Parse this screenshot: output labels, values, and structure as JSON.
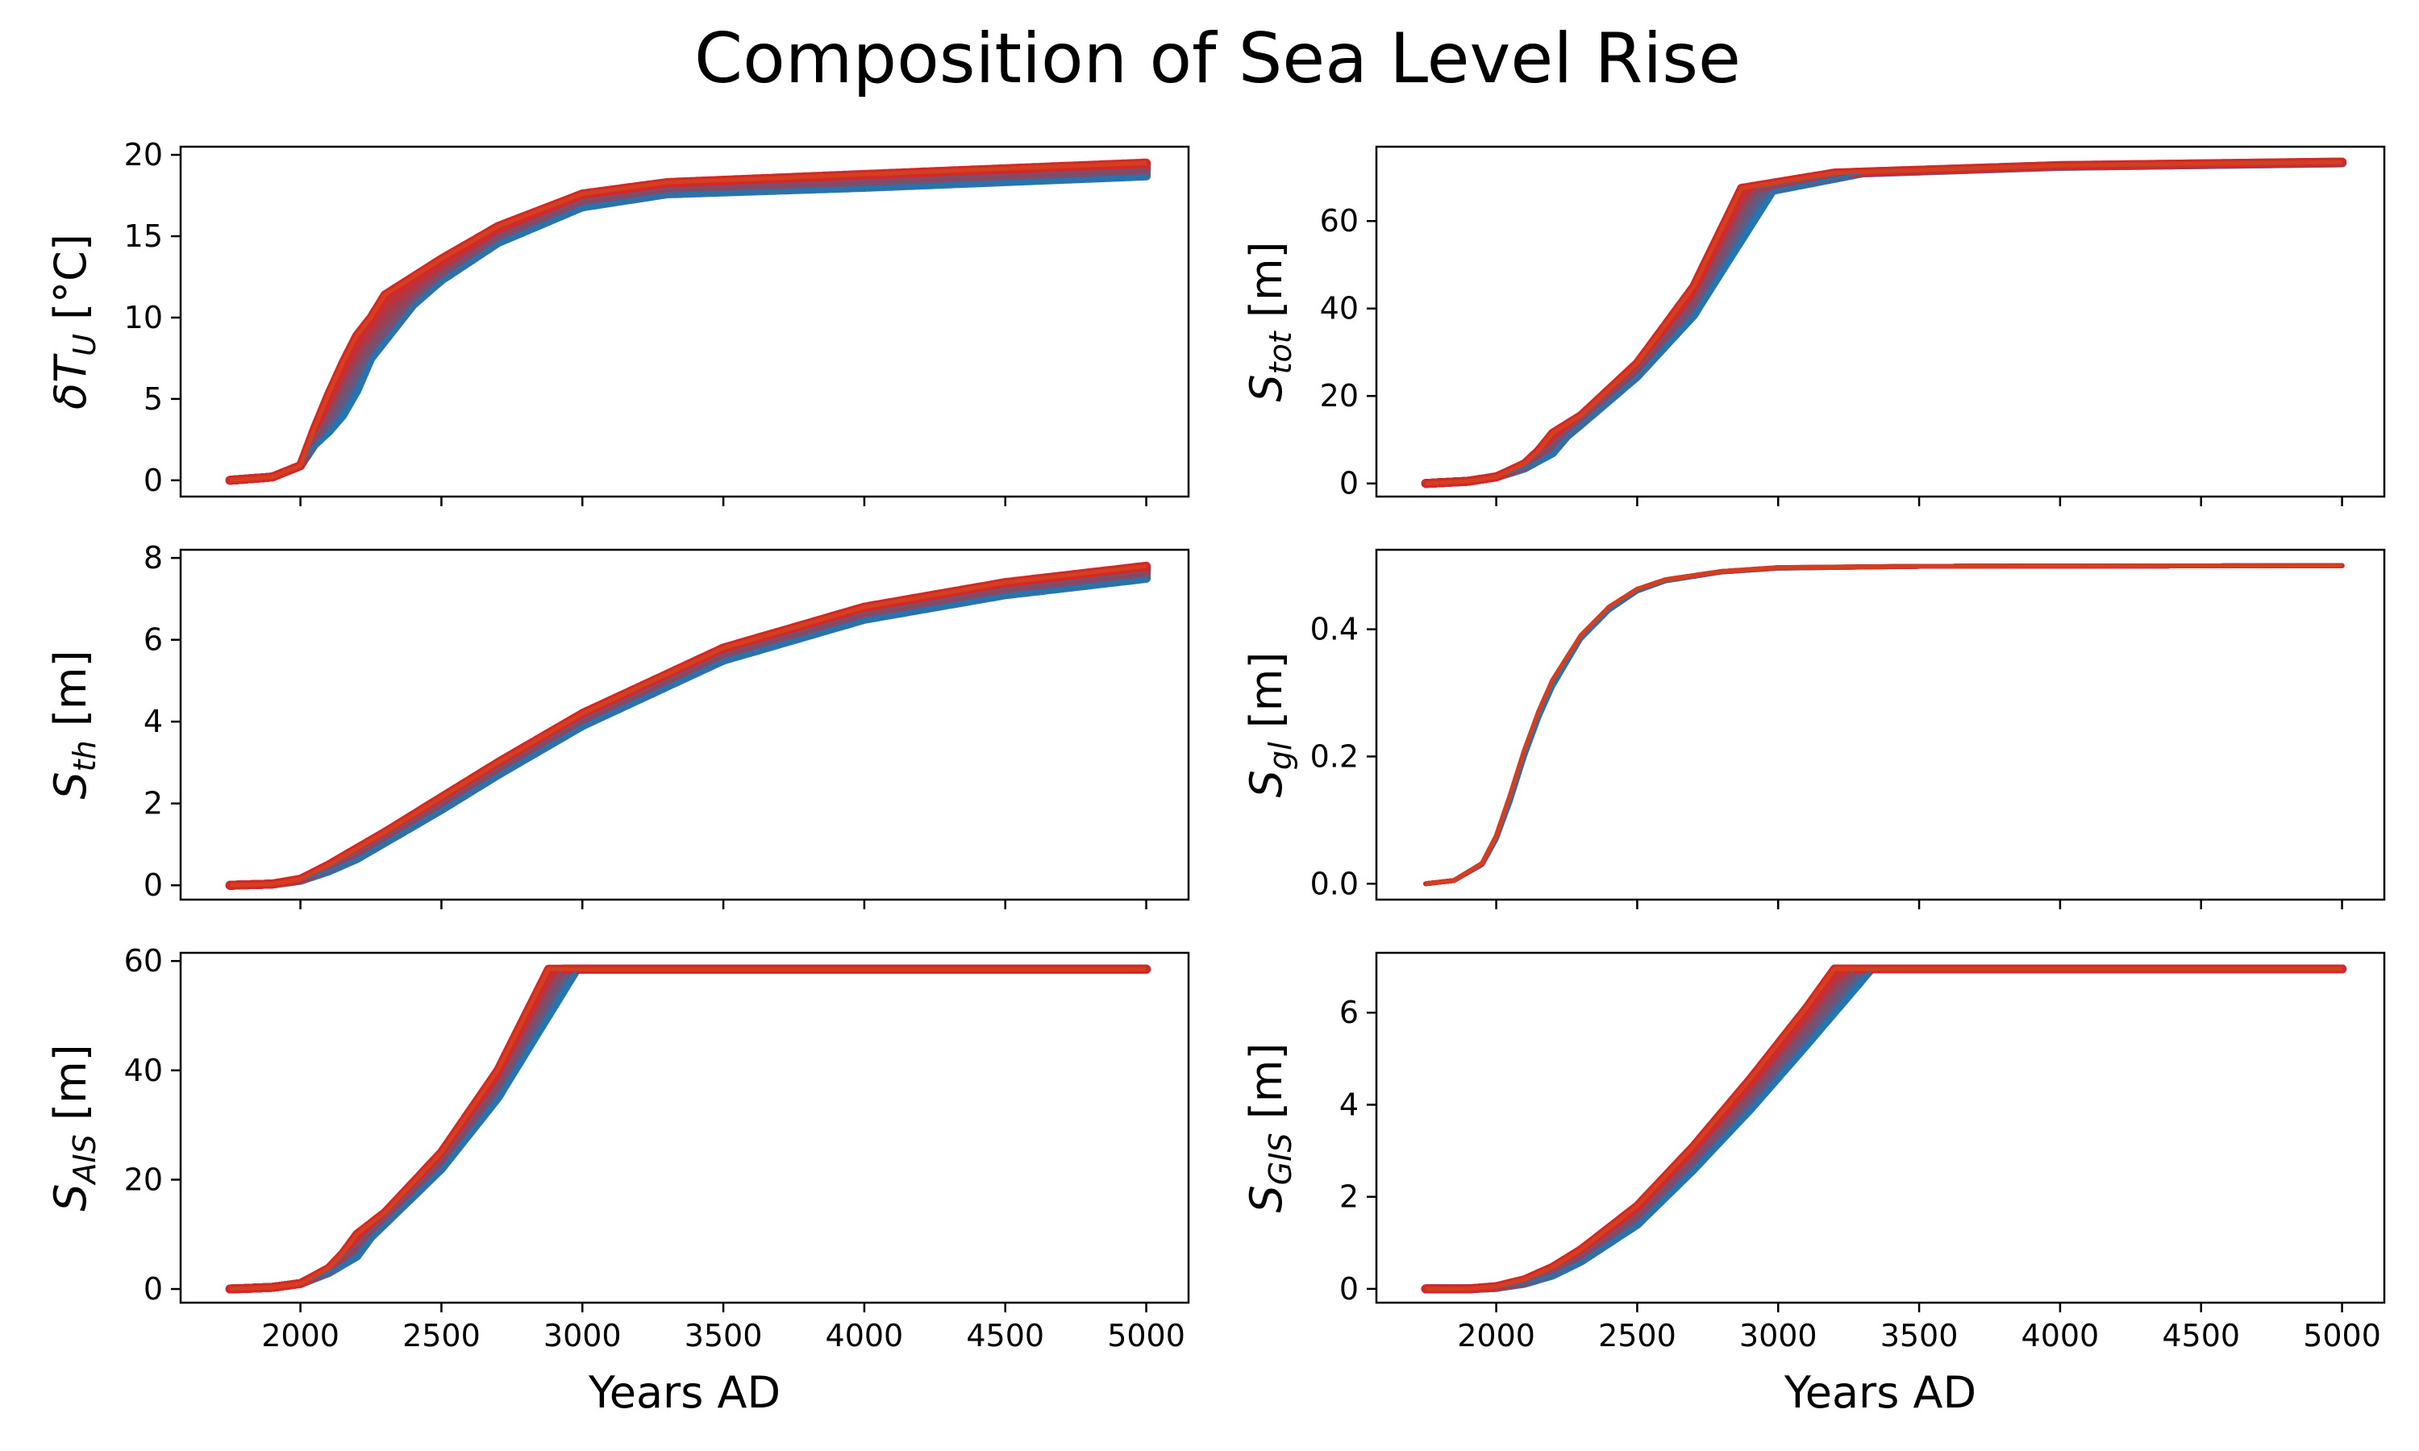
{
  "figure": {
    "title": "Composition of Sea Level Rise"
  },
  "colors": {
    "ensemble_low": "#1f77b4",
    "ensemble_high": "#d62728",
    "top_member": "#d2401e"
  },
  "chart_data": [
    {
      "type": "line",
      "panel": "delta-TU",
      "ylabel_main": "δT",
      "ylabel_sub": "U",
      "ylabel_unit": "[°C]",
      "xlabel": "",
      "xlim": [
        1575,
        5150
      ],
      "ylim": [
        -1,
        20.5
      ],
      "xticks": [
        2000,
        2500,
        3000,
        3500,
        4000,
        4500,
        5000
      ],
      "xtick_labels": [
        "",
        "",
        "",
        "",
        "",
        "",
        ""
      ],
      "yticks": [
        0,
        5,
        10,
        15,
        20
      ],
      "ytick_labels": [
        "0",
        "5",
        "10",
        "15",
        "20"
      ],
      "series": [
        {
          "x": [
            1750,
            1900,
            2000,
            2050,
            2100,
            2150,
            2200,
            2250,
            2300,
            2400,
            2500,
            2700,
            3000,
            3300,
            4000,
            5000
          ],
          "y": [
            0,
            0.2,
            0.9,
            2.2,
            3.0,
            4.0,
            5.5,
            7.5,
            8.6,
            10.8,
            12.3,
            14.6,
            16.8,
            17.6,
            18.0,
            18.7
          ]
        },
        {
          "x": [
            1750,
            1900,
            2000,
            2050,
            2100,
            2150,
            2200,
            2250,
            2300,
            2400,
            2500,
            2700,
            3000,
            3300,
            4000,
            5000
          ],
          "y": [
            0,
            0.2,
            0.9,
            2.6,
            4.0,
            5.5,
            7.0,
            8.3,
            9.3,
            11.2,
            12.7,
            15.0,
            17.2,
            17.9,
            18.4,
            19.1
          ]
        },
        {
          "x": [
            1750,
            1900,
            2000,
            2050,
            2100,
            2150,
            2200,
            2250,
            2300,
            2400,
            2500,
            2700,
            3000,
            3300,
            4000,
            5000
          ],
          "y": [
            0,
            0.2,
            0.9,
            3.2,
            5.3,
            7.2,
            8.9,
            10.0,
            11.4,
            12.5,
            13.6,
            15.6,
            17.6,
            18.3,
            18.8,
            19.5
          ]
        }
      ]
    },
    {
      "type": "line",
      "panel": "S-tot",
      "ylabel_main": "S",
      "ylabel_sub": "tot",
      "ylabel_unit": "[m]",
      "xlabel": "",
      "xlim": [
        1575,
        5150
      ],
      "ylim": [
        -3,
        77
      ],
      "xticks": [
        2000,
        2500,
        3000,
        3500,
        4000,
        4500,
        5000
      ],
      "xtick_labels": [
        "",
        "",
        "",
        "",
        "",
        "",
        ""
      ],
      "yticks": [
        0,
        20,
        40,
        60
      ],
      "ytick_labels": [
        "0",
        "20",
        "40",
        "60"
      ],
      "series": [
        {
          "x": [
            1750,
            1900,
            2000,
            2100,
            2200,
            2250,
            2300,
            2500,
            2700,
            2980,
            3300,
            4000,
            5000
          ],
          "y": [
            0,
            0.5,
            1.5,
            3.5,
            7.0,
            10.8,
            13.5,
            24.5,
            38.5,
            67.0,
            71.0,
            72.5,
            73.3
          ]
        },
        {
          "x": [
            1750,
            1900,
            2000,
            2100,
            2200,
            2250,
            2300,
            2500,
            2700,
            2920,
            3250,
            4000,
            5000
          ],
          "y": [
            0,
            0.5,
            1.5,
            4.0,
            9.0,
            12.0,
            14.5,
            26.0,
            41.5,
            67.3,
            71.0,
            72.6,
            73.4
          ]
        },
        {
          "x": [
            1750,
            1900,
            2000,
            2100,
            2150,
            2200,
            2300,
            2500,
            2700,
            2870,
            3200,
            4000,
            5000
          ],
          "y": [
            0,
            0.5,
            1.5,
            4.5,
            7.5,
            11.5,
            15.5,
            27.5,
            45.0,
            67.5,
            71.0,
            72.7,
            73.5
          ]
        }
      ]
    },
    {
      "type": "line",
      "panel": "S-th",
      "ylabel_main": "S",
      "ylabel_sub": "th",
      "ylabel_unit": "[m]",
      "xlabel": "",
      "xlim": [
        1575,
        5150
      ],
      "ylim": [
        -0.35,
        8.2
      ],
      "xticks": [
        2000,
        2500,
        3000,
        3500,
        4000,
        4500,
        5000
      ],
      "xtick_labels": [
        "",
        "",
        "",
        "",
        "",
        "",
        ""
      ],
      "yticks": [
        0,
        2,
        4,
        6,
        8
      ],
      "ytick_labels": [
        "0",
        "2",
        "4",
        "6",
        "8"
      ],
      "series": [
        {
          "x": [
            1750,
            1900,
            2000,
            2100,
            2200,
            2300,
            2500,
            2700,
            3000,
            3500,
            4000,
            4500,
            5000
          ],
          "y": [
            0,
            0.03,
            0.12,
            0.35,
            0.65,
            1.05,
            1.85,
            2.7,
            3.9,
            5.5,
            6.5,
            7.1,
            7.5
          ]
        },
        {
          "x": [
            1750,
            1900,
            2000,
            2100,
            2200,
            2300,
            2500,
            2700,
            3000,
            3500,
            4000,
            4500,
            5000
          ],
          "y": [
            0,
            0.03,
            0.14,
            0.42,
            0.78,
            1.18,
            2.0,
            2.85,
            4.05,
            5.65,
            6.65,
            7.25,
            7.65
          ]
        },
        {
          "x": [
            1750,
            1900,
            2000,
            2100,
            2200,
            2300,
            2500,
            2700,
            3000,
            3500,
            4000,
            4500,
            5000
          ],
          "y": [
            0,
            0.03,
            0.15,
            0.5,
            0.9,
            1.3,
            2.15,
            3.0,
            4.2,
            5.8,
            6.8,
            7.4,
            7.8
          ]
        }
      ]
    },
    {
      "type": "line",
      "panel": "S-gl",
      "ylabel_main": "S",
      "ylabel_sub": "gl",
      "ylabel_unit": "[m]",
      "xlabel": "",
      "xlim": [
        1575,
        5150
      ],
      "ylim": [
        -0.025,
        0.525
      ],
      "xticks": [
        2000,
        2500,
        3000,
        3500,
        4000,
        4500,
        5000
      ],
      "xtick_labels": [
        "",
        "",
        "",
        "",
        "",
        "",
        ""
      ],
      "yticks": [
        0,
        0.2,
        0.4
      ],
      "ytick_labels": [
        "0.0",
        "0.2",
        "0.4"
      ],
      "series": [
        {
          "x": [
            1750,
            1850,
            1950,
            2000,
            2050,
            2100,
            2150,
            2200,
            2300,
            2400,
            2500,
            2600,
            2800,
            3000,
            3500,
            5000
          ],
          "y": [
            0,
            0.005,
            0.03,
            0.07,
            0.13,
            0.2,
            0.26,
            0.31,
            0.385,
            0.43,
            0.46,
            0.476,
            0.49,
            0.496,
            0.499,
            0.5
          ]
        },
        {
          "x": [
            1750,
            1850,
            1950,
            2000,
            2050,
            2100,
            2150,
            2200,
            2300,
            2400,
            2500,
            2600,
            2800,
            3000,
            3500,
            5000
          ],
          "y": [
            0,
            0.005,
            0.032,
            0.075,
            0.14,
            0.21,
            0.27,
            0.32,
            0.39,
            0.435,
            0.463,
            0.478,
            0.491,
            0.497,
            0.499,
            0.5
          ]
        }
      ]
    },
    {
      "type": "line",
      "panel": "S-AIS",
      "ylabel_main": "S",
      "ylabel_sub": "AIS",
      "ylabel_unit": "[m]",
      "xlabel": "Years AD",
      "xlim": [
        1575,
        5150
      ],
      "ylim": [
        -2.5,
        61.5
      ],
      "xticks": [
        2000,
        2500,
        3000,
        3500,
        4000,
        4500,
        5000
      ],
      "xtick_labels": [
        "2000",
        "2500",
        "3000",
        "3500",
        "4000",
        "4500",
        "5000"
      ],
      "yticks": [
        0,
        20,
        40,
        60
      ],
      "ytick_labels": [
        "0",
        "20",
        "40",
        "60"
      ],
      "series": [
        {
          "x": [
            1750,
            1900,
            2000,
            2100,
            2200,
            2250,
            2300,
            2500,
            2700,
            2980,
            5000
          ],
          "y": [
            0,
            0.3,
            1.0,
            3.0,
            6.0,
            9.5,
            12.0,
            22.0,
            35.0,
            58.5,
            58.5
          ]
        },
        {
          "x": [
            1750,
            1900,
            2000,
            2100,
            2200,
            2250,
            2300,
            2500,
            2700,
            2930,
            5000
          ],
          "y": [
            0,
            0.3,
            1.0,
            3.5,
            8.0,
            10.8,
            13.0,
            23.5,
            37.5,
            58.5,
            58.5
          ]
        },
        {
          "x": [
            1750,
            1900,
            2000,
            2100,
            2150,
            2200,
            2300,
            2500,
            2700,
            2880,
            5000
          ],
          "y": [
            0,
            0.3,
            1.0,
            3.8,
            6.5,
            10.0,
            14.0,
            25.0,
            40.0,
            58.5,
            58.5
          ]
        }
      ]
    },
    {
      "type": "line",
      "panel": "S-GIS",
      "ylabel_main": "S",
      "ylabel_sub": "GIS",
      "ylabel_unit": "[m]",
      "xlabel": "Years AD",
      "xlim": [
        1575,
        5150
      ],
      "ylim": [
        -0.3,
        7.3
      ],
      "xticks": [
        2000,
        2500,
        3000,
        3500,
        4000,
        4500,
        5000
      ],
      "xtick_labels": [
        "2000",
        "2500",
        "3000",
        "3500",
        "4000",
        "4500",
        "5000"
      ],
      "yticks": [
        0,
        2,
        4,
        6
      ],
      "ytick_labels": [
        "0",
        "2",
        "4",
        "6"
      ],
      "series": [
        {
          "x": [
            1750,
            1900,
            2000,
            2100,
            2200,
            2300,
            2500,
            2700,
            2900,
            3100,
            3330,
            5000
          ],
          "y": [
            0,
            0,
            0.03,
            0.12,
            0.3,
            0.6,
            1.4,
            2.6,
            3.9,
            5.3,
            6.95,
            6.95
          ]
        },
        {
          "x": [
            1750,
            1900,
            2000,
            2100,
            2200,
            2300,
            2500,
            2700,
            2900,
            3100,
            3270,
            5000
          ],
          "y": [
            0,
            0,
            0.04,
            0.15,
            0.38,
            0.72,
            1.6,
            2.85,
            4.2,
            5.65,
            6.95,
            6.95
          ]
        },
        {
          "x": [
            1750,
            1900,
            2000,
            2100,
            2200,
            2300,
            2500,
            2700,
            2900,
            3100,
            3200,
            5000
          ],
          "y": [
            0,
            0,
            0.05,
            0.2,
            0.47,
            0.85,
            1.8,
            3.1,
            4.55,
            6.1,
            6.95,
            6.95
          ]
        }
      ]
    }
  ]
}
